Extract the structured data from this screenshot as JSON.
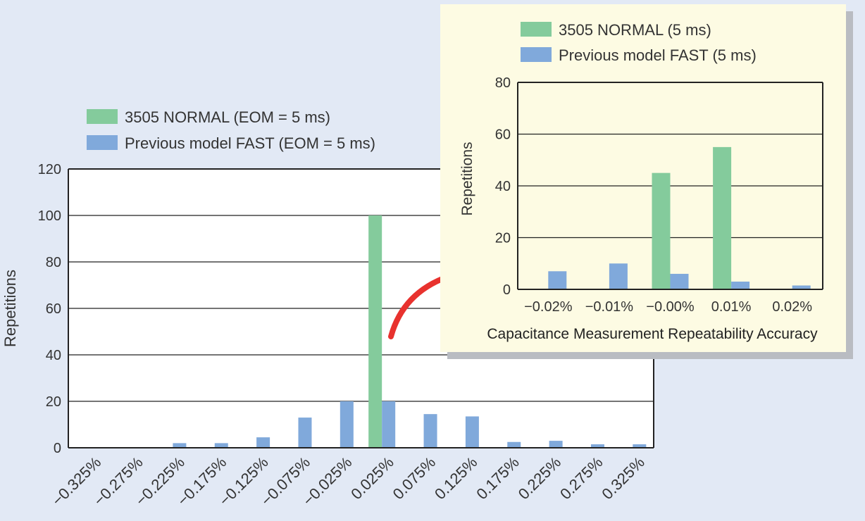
{
  "colors": {
    "background": "#e2e9f5",
    "normal": "#84cb9c",
    "fast": "#80a9db",
    "inset_background": "#fdfbe3",
    "inset_shadow": "#b9bcc2",
    "arrow": "#e8322e",
    "axis": "#222222",
    "text": "#333333"
  },
  "chart_data": [
    {
      "id": "main",
      "type": "bar",
      "title": "",
      "xlabel": "",
      "ylabel": "Repetitions",
      "ylim": [
        0,
        120
      ],
      "yticks": [
        "0",
        "20",
        "40",
        "60",
        "80",
        "100",
        "120"
      ],
      "categories": [
        "−0.325%",
        "−0.275%",
        "−0.225%",
        "−0.175%",
        "−0.125%",
        "−0.075%",
        "−0.025%",
        "0.025%",
        "0.075%",
        "0.125%",
        "0.175%",
        "0.225%",
        "0.275%",
        "0.325%"
      ],
      "series": [
        {
          "name": "3505 NORMAL (EOM = 5 ms)",
          "color": "normal",
          "values": [
            0,
            0,
            0,
            0,
            0,
            0,
            0,
            100,
            0,
            0,
            0,
            0,
            0,
            0
          ]
        },
        {
          "name": "Previous model FAST (EOM = 5 ms)",
          "color": "fast",
          "values": [
            0,
            0,
            2,
            2,
            4.5,
            13,
            20,
            20,
            14.5,
            13.5,
            2.5,
            3,
            1.5,
            1.5
          ]
        }
      ],
      "grid": true,
      "legend_position": "top-left"
    },
    {
      "id": "inset",
      "type": "bar",
      "title": "",
      "xlabel": "Capacitance Measurement Repeatability Accuracy",
      "ylabel": "Repetitions",
      "ylim": [
        0,
        80
      ],
      "yticks": [
        "0",
        "20",
        "40",
        "60",
        "80"
      ],
      "categories": [
        "−0.02%",
        "−0.01%",
        "−0.00%",
        "0.01%",
        "0.02%"
      ],
      "series": [
        {
          "name": "3505 NORMAL (5 ms)",
          "color": "normal",
          "values": [
            0,
            0,
            45,
            55,
            0
          ]
        },
        {
          "name": "Previous model FAST (5 ms)",
          "color": "fast",
          "values": [
            7,
            10,
            6,
            3,
            1.5
          ]
        }
      ],
      "grid": true,
      "legend_position": "top-left"
    }
  ]
}
